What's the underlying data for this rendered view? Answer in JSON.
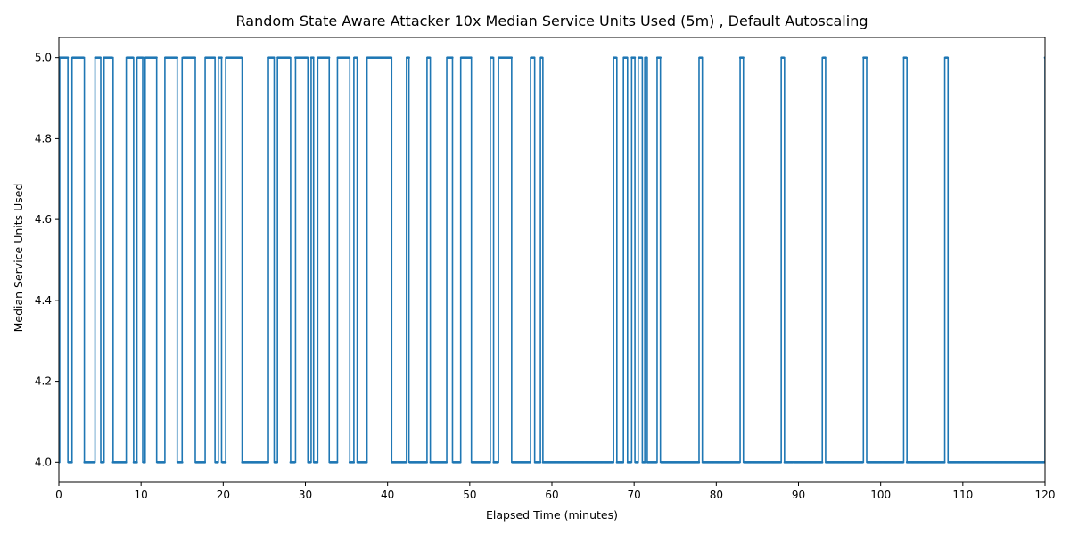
{
  "chart_data": {
    "type": "line",
    "title": "Random State Aware Attacker 10x Median Service Units Used (5m) , Default Autoscaling",
    "xlabel": "Elapsed Time (minutes)",
    "ylabel": "Median Service Units Used",
    "xlim": [
      0,
      120
    ],
    "ylim": [
      3.95,
      5.05
    ],
    "xticks": [
      0,
      10,
      20,
      30,
      40,
      50,
      60,
      70,
      80,
      90,
      100,
      110,
      120
    ],
    "yticks": [
      4.0,
      4.2,
      4.4,
      4.6,
      4.8,
      5.0
    ],
    "ytick_labels": [
      "4.0",
      "4.2",
      "4.4",
      "4.6",
      "4.8",
      "5.0"
    ],
    "grid": false,
    "series": [
      {
        "color": "#1f77b4",
        "marker": "dot",
        "step": true,
        "x": [
          0,
          0.1,
          1.1,
          1.6,
          3.1,
          4.4,
          5.1,
          5.5,
          6.6,
          8.2,
          9.1,
          9.5,
          10.2,
          10.5,
          11.9,
          12.9,
          14.4,
          15.0,
          16.6,
          17.8,
          19.0,
          19.4,
          19.8,
          20.3,
          22.3,
          25.5,
          26.2,
          26.6,
          28.2,
          28.8,
          30.3,
          30.7,
          31.0,
          31.5,
          32.9,
          33.9,
          35.4,
          35.9,
          36.3,
          37.5,
          40.5,
          42.3,
          42.6,
          44.8,
          45.2,
          47.2,
          47.9,
          48.9,
          50.2,
          52.5,
          52.9,
          53.5,
          55.1,
          57.4,
          57.9,
          58.6,
          58.9,
          67.5,
          67.9,
          68.7,
          69.2,
          69.7,
          70.1,
          70.5,
          71.0,
          71.3,
          71.6,
          72.8,
          73.2,
          77.9,
          78.3,
          82.9,
          83.3,
          87.9,
          88.3,
          92.9,
          93.3,
          97.9,
          98.3,
          102.8,
          103.2,
          107.8,
          108.2,
          120
        ],
        "y": [
          4.0,
          5.0,
          4.0,
          5.0,
          4.0,
          5.0,
          4.0,
          5.0,
          4.0,
          5.0,
          4.0,
          5.0,
          4.0,
          5.0,
          4.0,
          5.0,
          4.0,
          5.0,
          4.0,
          5.0,
          4.0,
          5.0,
          4.0,
          5.0,
          4.0,
          5.0,
          4.0,
          5.0,
          4.0,
          5.0,
          4.0,
          5.0,
          4.0,
          5.0,
          4.0,
          5.0,
          4.0,
          5.0,
          4.0,
          5.0,
          4.0,
          5.0,
          4.0,
          5.0,
          4.0,
          5.0,
          4.0,
          5.0,
          4.0,
          5.0,
          4.0,
          5.0,
          4.0,
          5.0,
          4.0,
          5.0,
          4.0,
          5.0,
          4.0,
          5.0,
          4.0,
          5.0,
          4.0,
          5.0,
          4.0,
          5.0,
          4.0,
          5.0,
          4.0,
          5.0,
          4.0,
          5.0,
          4.0,
          5.0,
          4.0,
          5.0,
          4.0,
          5.0,
          4.0,
          5.0,
          4.0,
          5.0,
          4.0,
          5.0
        ]
      }
    ]
  }
}
